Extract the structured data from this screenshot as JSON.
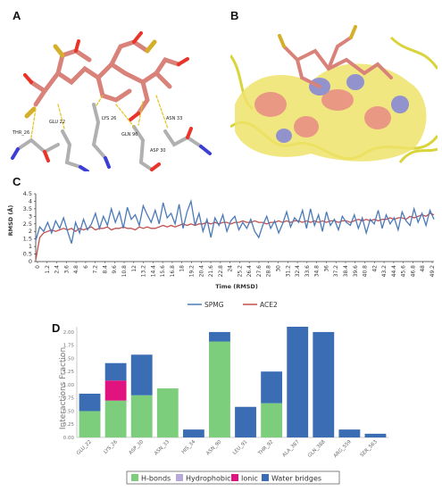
{
  "panels": {
    "a": {
      "letter": "A",
      "residue_labels": [
        "THR_26",
        "GLU 22",
        "LYS 26",
        "GLN 96",
        "ASN 33",
        "ASP 30"
      ]
    },
    "b": {
      "letter": "B"
    },
    "c": {
      "letter": "C"
    },
    "d": {
      "letter": "D"
    }
  },
  "chart_data": [
    {
      "type": "line",
      "ylabel": "RMSD (Å)",
      "xlabel": "Time (RMSD)",
      "ylim": [
        0,
        4.5
      ],
      "yticks": [
        0,
        0.5,
        1,
        1.5,
        2,
        2.5,
        3,
        3.5,
        4,
        4.5
      ],
      "xlim": [
        0,
        50
      ],
      "xticks": [
        "0",
        "1.2",
        "2.4",
        "3.6",
        "4.8",
        "6",
        "7.2",
        "8.4",
        "9.6",
        "10.8",
        "12",
        "13.2",
        "14.4",
        "15.6",
        "16.8",
        "18",
        "19.2",
        "20.4",
        "21.6",
        "22.8",
        "24",
        "25.2",
        "26.4",
        "27.6",
        "28.8",
        "30",
        "31.2",
        "32.4",
        "33.6",
        "34.8",
        "36",
        "37.2",
        "38.4",
        "39.6",
        "40.8",
        "42",
        "43.2",
        "44.4",
        "45.6",
        "46.8",
        "48",
        "49.2"
      ],
      "legend_position": "bottom-center",
      "grid": false,
      "series": [
        {
          "name": "SPMG",
          "color": "#4a7ab8",
          "x": [
            0,
            0.5,
            1,
            1.5,
            2,
            2.5,
            3,
            3.5,
            4,
            4.5,
            5,
            5.5,
            6,
            6.5,
            7,
            7.5,
            8,
            8.5,
            9,
            9.5,
            10,
            10.5,
            11,
            11.5,
            12,
            12.5,
            13,
            13.5,
            14,
            14.5,
            15,
            15.5,
            16,
            16.5,
            17,
            17.5,
            18,
            18.5,
            19,
            19.5,
            20,
            20.5,
            21,
            21.5,
            22,
            22.5,
            23,
            23.5,
            24,
            24.5,
            25,
            25.5,
            26,
            26.5,
            27,
            27.5,
            28,
            28.5,
            29,
            29.5,
            30,
            30.5,
            31,
            31.5,
            32,
            32.5,
            33,
            33.5,
            34,
            34.5,
            35,
            35.5,
            36,
            36.5,
            37,
            37.5,
            38,
            38.5,
            39,
            39.5,
            40,
            40.5,
            41,
            41.5,
            42,
            42.5,
            43,
            43.5,
            44,
            44.5,
            45,
            45.5,
            46,
            46.5,
            47,
            47.5,
            48,
            48.5,
            49,
            49.5,
            50
          ],
          "values": [
            1.4,
            2.3,
            2.0,
            2.6,
            1.9,
            2.7,
            2.2,
            2.9,
            2.0,
            1.2,
            2.6,
            1.9,
            2.8,
            2.1,
            2.5,
            3.2,
            2.2,
            3.0,
            2.4,
            3.5,
            2.6,
            3.3,
            2.2,
            3.6,
            2.8,
            3.1,
            2.4,
            3.7,
            3.1,
            2.6,
            3.4,
            2.5,
            3.9,
            2.9,
            3.2,
            2.5,
            3.8,
            2.2,
            3.3,
            4.0,
            2.4,
            3.2,
            2.0,
            2.8,
            1.6,
            2.9,
            2.4,
            3.1,
            2.0,
            2.7,
            3.0,
            2.1,
            2.6,
            2.2,
            2.8,
            2.0,
            1.6,
            2.4,
            3.0,
            2.2,
            2.7,
            1.9,
            2.5,
            3.3,
            2.3,
            2.9,
            2.6,
            3.4,
            2.2,
            3.5,
            2.4,
            3.1,
            2.0,
            3.3,
            2.4,
            2.8,
            2.1,
            3.0,
            2.6,
            2.4,
            3.1,
            2.2,
            2.9,
            1.9,
            2.8,
            2.5,
            3.4,
            2.2,
            3.1,
            2.5,
            2.9,
            2.1,
            3.3,
            2.7,
            2.4,
            3.5,
            2.6,
            3.2,
            2.4,
            3.4,
            2.8
          ]
        },
        {
          "name": "ACE2",
          "color": "#c0504d",
          "x": [
            0,
            0.5,
            1,
            1.5,
            2,
            2.5,
            3,
            3.5,
            4,
            4.5,
            5,
            5.5,
            6,
            6.5,
            7,
            7.5,
            8,
            8.5,
            9,
            9.5,
            10,
            10.5,
            11,
            11.5,
            12,
            12.5,
            13,
            13.5,
            14,
            14.5,
            15,
            15.5,
            16,
            16.5,
            17,
            17.5,
            18,
            18.5,
            19,
            19.5,
            20,
            20.5,
            21,
            21.5,
            22,
            22.5,
            23,
            23.5,
            24,
            24.5,
            25,
            25.5,
            26,
            26.5,
            27,
            27.5,
            28,
            28.5,
            29,
            29.5,
            30,
            30.5,
            31,
            31.5,
            32,
            32.5,
            33,
            33.5,
            34,
            34.5,
            35,
            35.5,
            36,
            36.5,
            37,
            37.5,
            38,
            38.5,
            39,
            39.5,
            40,
            40.5,
            41,
            41.5,
            42,
            42.5,
            43,
            43.5,
            44,
            44.5,
            45,
            45.5,
            46,
            46.5,
            47,
            47.5,
            48,
            48.5,
            49,
            49.5,
            50
          ],
          "values": [
            0.1,
            1.6,
            1.9,
            2.0,
            2.1,
            2.0,
            2.1,
            2.2,
            2.1,
            2.2,
            2.0,
            2.2,
            2.1,
            2.2,
            2.3,
            2.1,
            2.2,
            2.2,
            2.3,
            2.1,
            2.2,
            2.2,
            2.3,
            2.2,
            2.2,
            2.1,
            2.3,
            2.2,
            2.3,
            2.2,
            2.2,
            2.3,
            2.4,
            2.3,
            2.4,
            2.3,
            2.4,
            2.5,
            2.4,
            2.5,
            2.4,
            2.5,
            2.5,
            2.6,
            2.5,
            2.6,
            2.5,
            2.6,
            2.6,
            2.5,
            2.6,
            2.6,
            2.7,
            2.6,
            2.6,
            2.7,
            2.6,
            2.6,
            2.5,
            2.6,
            2.6,
            2.7,
            2.6,
            2.7,
            2.6,
            2.7,
            2.7,
            2.6,
            2.7,
            2.6,
            2.7,
            2.6,
            2.7,
            2.6,
            2.7,
            2.7,
            2.6,
            2.7,
            2.7,
            2.6,
            2.7,
            2.8,
            2.7,
            2.8,
            2.7,
            2.8,
            2.7,
            2.8,
            2.8,
            2.9,
            2.8,
            2.9,
            2.9,
            2.8,
            3.0,
            2.9,
            3.0,
            3.1,
            3.0,
            3.2,
            3.1
          ]
        }
      ]
    },
    {
      "type": "bar",
      "stacked": true,
      "ylabel": "Interactions Fraction",
      "ylim": [
        0,
        2.1
      ],
      "yticks": [
        "0.00",
        "0.25",
        "0.50",
        "0.75",
        "1.00",
        "1.25",
        "1.50",
        "1.75",
        "2.00"
      ],
      "categories": [
        "GLU_22",
        "LYS_26",
        "ASP_30",
        "ASN_33",
        "HIS_34",
        "ASN_90",
        "LEU_91",
        "THR_92",
        "ALA_387",
        "GLN_388",
        "ARG_559",
        "SER_563"
      ],
      "legend_position": "bottom-center",
      "series": [
        {
          "name": "H-bonds",
          "color": "#7ccd7c",
          "values": [
            0.5,
            0.7,
            0.8,
            0.93,
            0,
            1.82,
            0,
            0.65,
            0,
            0,
            0,
            0
          ]
        },
        {
          "name": "Hydrophobic",
          "color": "#b7a9d9",
          "values": [
            0,
            0,
            0,
            0,
            0,
            0,
            0,
            0,
            0,
            0,
            0,
            0
          ]
        },
        {
          "name": "Ionic",
          "color": "#e0137f",
          "values": [
            0,
            0.38,
            0,
            0,
            0,
            0,
            0,
            0,
            0,
            0,
            0,
            0
          ]
        },
        {
          "name": "Water bridges",
          "color": "#3a6db3",
          "values": [
            0.33,
            0.33,
            0.77,
            0,
            0.15,
            0.18,
            0.58,
            0.6,
            2.1,
            2.0,
            0.15,
            0.07
          ]
        }
      ]
    }
  ]
}
